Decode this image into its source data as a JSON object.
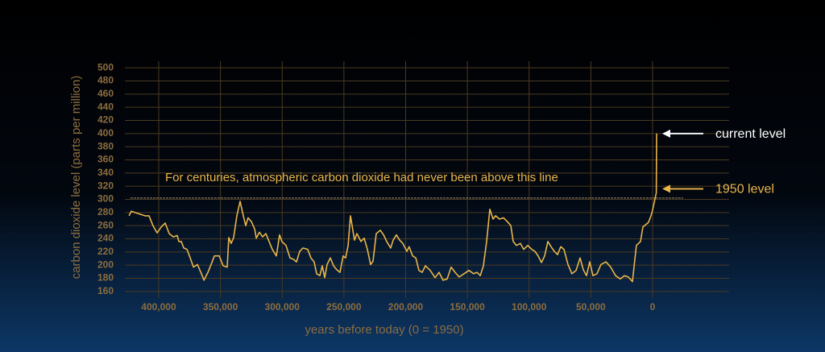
{
  "chart_data": {
    "type": "line",
    "y_label": "carbon dioxide level (parts per million)",
    "x_label": "years before today (0 = 1950)",
    "xlim": [
      427400,
      -62000
    ],
    "ylim": [
      150,
      510
    ],
    "xticks": [
      {
        "value": 400000,
        "label": "400,000"
      },
      {
        "value": 350000,
        "label": "350,000"
      },
      {
        "value": 300000,
        "label": "300,000"
      },
      {
        "value": 250000,
        "label": "250,000"
      },
      {
        "value": 200000,
        "label": "200,000"
      },
      {
        "value": 150000,
        "label": "150,000"
      },
      {
        "value": 100000,
        "label": "100,000"
      },
      {
        "value": 50000,
        "label": "50,000"
      },
      0
    ],
    "yticks": [
      160,
      180,
      200,
      220,
      240,
      260,
      280,
      300,
      320,
      340,
      360,
      380,
      400,
      420,
      440,
      460,
      480,
      500
    ],
    "grid": true,
    "reference_line": {
      "value": 302,
      "label": "For centuries, atmospheric carbon dioxide had never been above this line"
    },
    "annotations": [
      {
        "text": "current level",
        "value": 400,
        "color": "#ffffff"
      },
      {
        "text": "1950 level",
        "value": 316,
        "color": "#e8b54a"
      }
    ],
    "series": [
      {
        "color": "#e8b54a",
        "x": [
          424100,
          422200,
          417600,
          411100,
          407800,
          404600,
          401300,
          398000,
          394800,
          391500,
          388200,
          385000,
          383700,
          381700,
          379700,
          377100,
          374500,
          371900,
          368600,
          365400,
          363400,
          360100,
          357600,
          354900,
          351000,
          347800,
          344500,
          343200,
          341300,
          339300,
          336700,
          334100,
          331500,
          329500,
          327600,
          324900,
          322300,
          321000,
          318400,
          315800,
          313200,
          310600,
          308000,
          304700,
          302100,
          300200,
          296900,
          293600,
          291000,
          288400,
          285800,
          283200,
          279300,
          276700,
          274100,
          272100,
          269500,
          267500,
          265600,
          263600,
          261000,
          258400,
          255800,
          253200,
          250600,
          248600,
          246600,
          244700,
          241400,
          239500,
          236200,
          233600,
          231000,
          228400,
          226400,
          223800,
          220500,
          217900,
          215300,
          212100,
          210100,
          207500,
          204900,
          202300,
          199000,
          197100,
          194400,
          191800,
          189200,
          186600,
          184000,
          180100,
          176200,
          172900,
          169700,
          166400,
          163100,
          159900,
          156600,
          152700,
          148800,
          144900,
          142200,
          139600,
          137000,
          134400,
          131800,
          129200,
          127200,
          124000,
          120700,
          117500,
          114800,
          112900,
          110300,
          107000,
          104400,
          101100,
          97900,
          95300,
          92700,
          90000,
          87400,
          84800,
          82200,
          79600,
          77000,
          74400,
          71800,
          68500,
          65300,
          62000,
          58700,
          56100,
          53500,
          50900,
          48300,
          45000,
          41800,
          37800,
          33900,
          30000,
          26100,
          22800,
          19600,
          16300,
          13100,
          9800,
          7800,
          3300,
          1300,
          200,
          -3000,
          -3300
        ],
        "values": [
          275,
          282,
          279,
          275,
          275,
          260,
          249,
          258,
          264,
          248,
          243,
          245,
          236,
          236,
          226,
          224,
          211,
          197,
          201,
          187,
          177,
          189,
          201,
          214,
          214,
          199,
          197,
          242,
          233,
          242,
          275,
          297,
          275,
          260,
          272,
          266,
          255,
          241,
          250,
          243,
          248,
          236,
          224,
          214,
          246,
          236,
          230,
          211,
          209,
          205,
          221,
          226,
          224,
          211,
          205,
          187,
          184,
          199,
          181,
          201,
          211,
          199,
          193,
          189,
          214,
          211,
          230,
          275,
          238,
          248,
          236,
          241,
          224,
          201,
          206,
          248,
          253,
          246,
          236,
          226,
          238,
          246,
          238,
          233,
          221,
          228,
          214,
          211,
          192,
          189,
          199,
          192,
          181,
          189,
          177,
          179,
          197,
          189,
          182,
          187,
          192,
          187,
          189,
          184,
          199,
          236,
          285,
          270,
          275,
          270,
          272,
          266,
          260,
          236,
          230,
          233,
          224,
          230,
          224,
          221,
          214,
          204,
          214,
          236,
          228,
          221,
          216,
          228,
          224,
          201,
          187,
          192,
          211,
          193,
          184,
          205,
          184,
          187,
          201,
          205,
          197,
          184,
          179,
          184,
          182,
          175,
          230,
          236,
          258,
          265,
          275,
          282,
          310,
          400
        ]
      }
    ]
  }
}
